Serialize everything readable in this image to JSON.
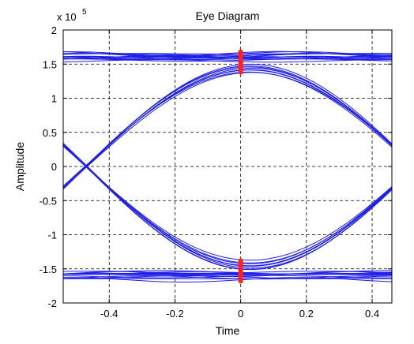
{
  "chart_data": {
    "type": "line",
    "title": "Eye Diagram",
    "xlabel": "Time",
    "ylabel": "Amplitude",
    "y_exponent_prefix": "x 10",
    "y_exponent": "5",
    "y_scale": 100000,
    "xlim": [
      -0.54,
      0.46
    ],
    "ylim": [
      -2,
      2
    ],
    "x_ticks": [
      -0.4,
      -0.2,
      0,
      0.2,
      0.4
    ],
    "x_tick_labels": [
      "-0.4",
      "-0.2",
      "0",
      "0.2",
      "0.4"
    ],
    "y_ticks": [
      -2,
      -1.5,
      -1,
      -0.5,
      0,
      0.5,
      1,
      1.5,
      2
    ],
    "y_tick_labels": [
      "-2",
      "-1.5",
      "-1",
      "-0.5",
      "0",
      "0.5",
      "1",
      "1.5",
      "2"
    ],
    "grid": true,
    "grid_style": "dashed",
    "trace_color": "#1f1fe6",
    "marker_color": "#ff2020",
    "trace_levels": [
      1.6,
      -1.6
    ],
    "crossing_time": -0.47,
    "sampling_time": 0,
    "sample_markers": [
      {
        "x": 0,
        "y_min": 1.38,
        "y_max": 1.68
      },
      {
        "x": 0,
        "y_min": -1.68,
        "y_max": -1.38
      }
    ],
    "series": [
      {
        "values_x": [
          -0.54,
          -0.47,
          -0.35,
          -0.2,
          -0.1,
          0,
          0.1,
          0.2,
          0.35,
          0.46
        ],
        "values_y": [
          -0.3,
          0,
          0.65,
          1.1,
          1.35,
          1.5,
          1.4,
          1.1,
          0.6,
          0.28
        ]
      },
      {
        "values_x": [
          -0.54,
          -0.47,
          -0.35,
          -0.2,
          -0.1,
          0,
          0.1,
          0.2,
          0.35,
          0.46
        ],
        "values_y": [
          0.3,
          0,
          -0.65,
          -1.1,
          -1.35,
          -1.45,
          -1.35,
          -1.1,
          -0.6,
          -0.28
        ]
      }
    ]
  }
}
